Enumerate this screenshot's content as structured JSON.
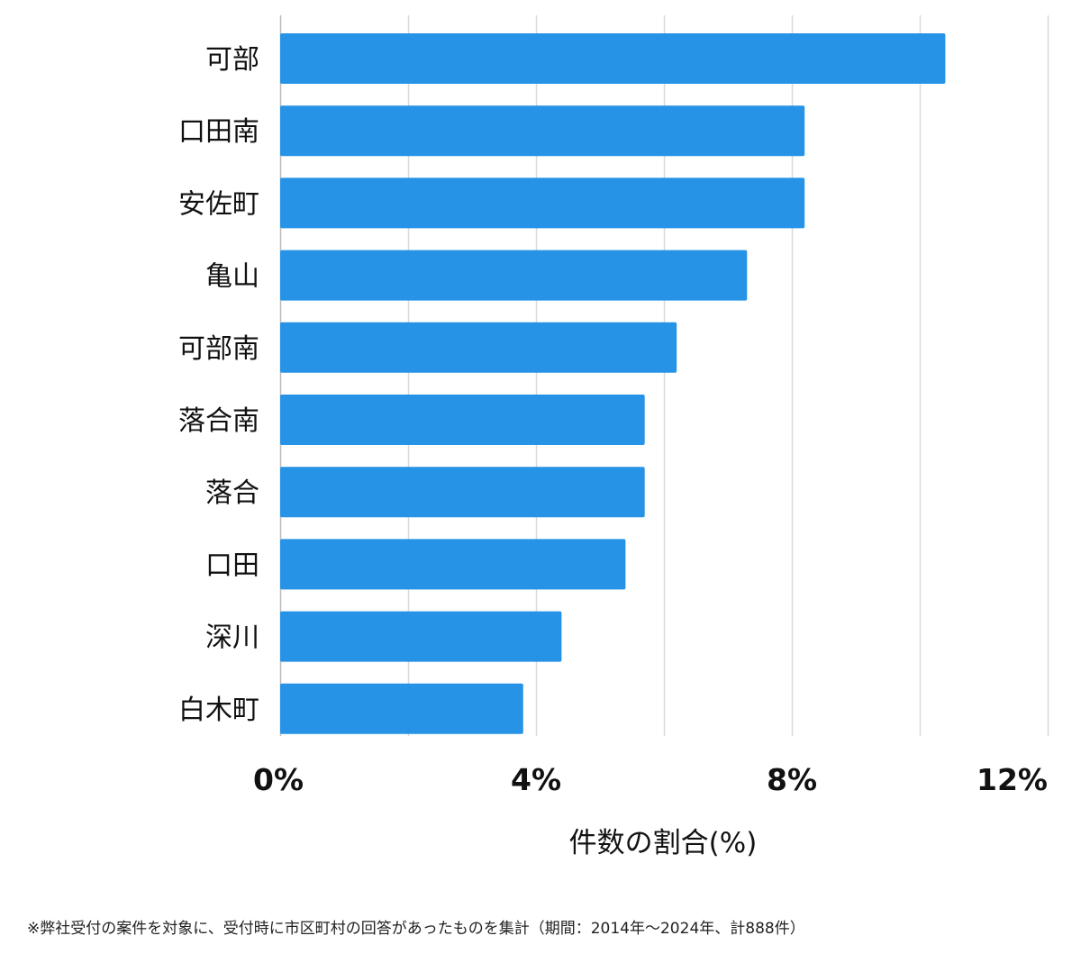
{
  "chart_data": {
    "type": "bar",
    "orientation": "horizontal",
    "categories": [
      "可部",
      "口田南",
      "安佐町",
      "亀山",
      "可部南",
      "落合南",
      "落合",
      "口田",
      "深川",
      "白木町"
    ],
    "series": [
      {
        "values": [
          10.4,
          8.2,
          8.2,
          7.3,
          6.2,
          5.7,
          5.7,
          5.4,
          4.4,
          3.8
        ]
      }
    ],
    "xlabel": "件数の割合(%)",
    "ylabel": "",
    "xlim": [
      0,
      12
    ],
    "xticks": [
      0,
      4,
      8,
      12
    ],
    "xtick_labels": [
      "0%",
      "4%",
      "8%",
      "12%"
    ],
    "grid": true,
    "legend": "none",
    "bar_color": "#2693e6",
    "grid_color": "#d9d9d9"
  },
  "footnote": "※弊社受付の案件を対象に、受付時に市区町村の回答があったものを集計（期間：2014年～2024年、計888件）"
}
